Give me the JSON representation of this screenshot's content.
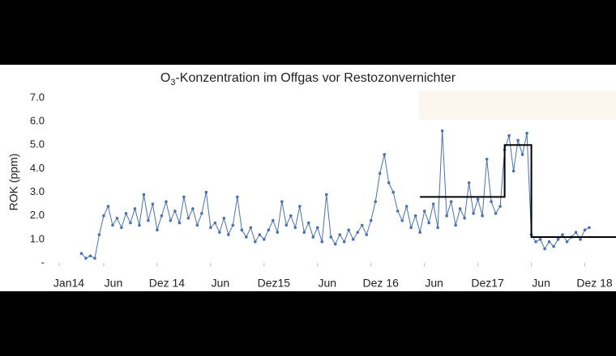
{
  "chart_data": {
    "type": "line",
    "title_parts": [
      "O",
      "3",
      "-Konzentration im Offgas vor Restozonvernichter"
    ],
    "ylabel": "ROK (ppm)",
    "xlim": [
      0,
      62.5
    ],
    "xticks": [
      {
        "value": 0,
        "label": "Jan14"
      },
      {
        "value": 5,
        "label": "Jun"
      },
      {
        "value": 11,
        "label": "Dez 14"
      },
      {
        "value": 17,
        "label": "Jun"
      },
      {
        "value": 23,
        "label": "Dez15"
      },
      {
        "value": 29,
        "label": "Jun"
      },
      {
        "value": 35,
        "label": "Dez 16"
      },
      {
        "value": 41,
        "label": "Jun"
      },
      {
        "value": 47,
        "label": "Dez17"
      },
      {
        "value": 53,
        "label": "Jun"
      },
      {
        "value": 59,
        "label": "Dez 18"
      }
    ],
    "ylim": [
      0,
      7
    ],
    "yticks": [
      {
        "value": 0,
        "label": "-"
      },
      {
        "value": 1,
        "label": "1.0"
      },
      {
        "value": 2,
        "label": "2.0"
      },
      {
        "value": 3,
        "label": "3.0"
      },
      {
        "value": 4,
        "label": "4.0"
      },
      {
        "value": 5,
        "label": "5.0"
      },
      {
        "value": 6,
        "label": "6.0"
      },
      {
        "value": 7,
        "label": "7.0"
      }
    ],
    "grid": false,
    "series": [
      {
        "color": "#4a72b0",
        "markers": true,
        "x": [
          2.5,
          3,
          3.5,
          4,
          4.5,
          5,
          5.5,
          6,
          6.5,
          7,
          7.5,
          8,
          8.5,
          9,
          9.5,
          10,
          10.5,
          11,
          11.5,
          12,
          12.5,
          13,
          13.5,
          14,
          14.5,
          15,
          15.5,
          16,
          16.5,
          17,
          17.5,
          18,
          18.5,
          19,
          19.5,
          20,
          20.5,
          21,
          21.5,
          22,
          22.5,
          23,
          23.5,
          24,
          24.5,
          25,
          25.5,
          26,
          26.5,
          27,
          27.5,
          28,
          28.5,
          29,
          29.5,
          30,
          30.5,
          31,
          31.5,
          32,
          32.5,
          33,
          33.5,
          34,
          34.5,
          35,
          35.5,
          36,
          36.5,
          37,
          37.5,
          38,
          38.5,
          39,
          39.5,
          40,
          40.5,
          41,
          41.5,
          42,
          42.5,
          43,
          43.5,
          44,
          44.5,
          45,
          45.5,
          46,
          46.5,
          47,
          47.5,
          48,
          48.5,
          49,
          49.5,
          50,
          50.5,
          51,
          51.5,
          52,
          52.5,
          53,
          53.5,
          54,
          54.5,
          55,
          55.5,
          56,
          56.5,
          57,
          57.5,
          58,
          58.5,
          59,
          59.5
        ],
        "values": [
          0.4,
          0.2,
          0.3,
          0.2,
          1.2,
          2.0,
          2.4,
          1.6,
          1.9,
          1.5,
          2.1,
          1.7,
          2.3,
          1.6,
          2.9,
          1.8,
          2.5,
          1.4,
          2.0,
          2.6,
          1.8,
          2.2,
          1.7,
          2.8,
          1.9,
          2.3,
          1.6,
          2.1,
          3.0,
          1.5,
          1.7,
          1.3,
          1.9,
          1.2,
          1.6,
          2.8,
          1.4,
          1.1,
          1.5,
          0.9,
          1.2,
          1.0,
          1.4,
          1.8,
          1.3,
          2.6,
          1.6,
          2.0,
          1.5,
          2.4,
          1.3,
          1.7,
          1.1,
          1.5,
          0.9,
          2.9,
          1.1,
          0.8,
          1.2,
          0.9,
          1.4,
          1.0,
          1.3,
          1.6,
          1.2,
          1.8,
          2.6,
          3.8,
          4.6,
          3.4,
          3.0,
          2.2,
          1.8,
          2.4,
          1.5,
          2.0,
          1.3,
          2.2,
          1.7,
          2.5,
          1.5,
          5.6,
          2.0,
          2.6,
          1.6,
          2.3,
          1.9,
          3.4,
          2.1,
          2.7,
          2.0,
          4.4,
          2.6,
          2.1,
          2.4,
          4.8,
          5.4,
          3.9,
          5.2,
          4.6,
          5.5,
          1.2,
          0.9,
          1.0,
          0.6,
          0.9,
          0.7,
          1.0,
          1.2,
          0.9,
          1.1,
          1.3,
          1.0,
          1.4,
          1.5
        ]
      },
      {
        "color": "#000000",
        "markers": false,
        "x": [
          40.5,
          50,
          50,
          53,
          53,
          62.5
        ],
        "values": [
          2.8,
          2.8,
          5.0,
          5.0,
          1.1,
          1.1
        ]
      }
    ]
  }
}
